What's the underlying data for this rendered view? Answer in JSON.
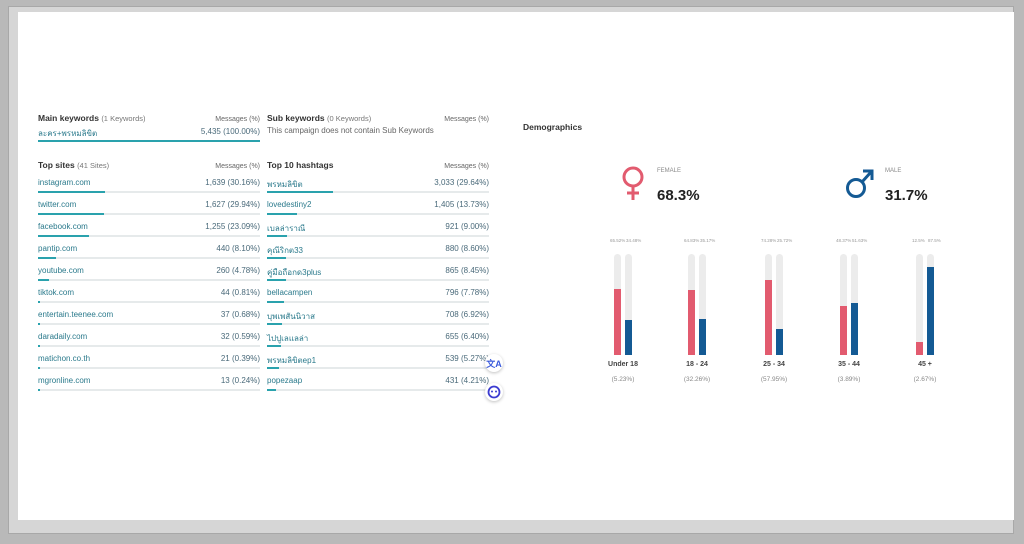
{
  "main_keywords": {
    "title": "Main keywords",
    "count": "(1 Keywords)",
    "messages_header": "Messages (%)",
    "items": [
      {
        "label": "ละคร+พรหมลิขิต",
        "value": "5,435 (100.00%)",
        "pct": 100
      }
    ]
  },
  "sub_keywords": {
    "title": "Sub keywords",
    "count": "(0 Keywords)",
    "messages_header": "Messages (%)",
    "note": "This campaign does not contain Sub Keywords"
  },
  "top_sites": {
    "title": "Top sites",
    "count": "(41 Sites)",
    "messages_header": "Messages (%)",
    "items": [
      {
        "label": "instagram.com",
        "value": "1,639 (30.16%)",
        "pct": 30.16
      },
      {
        "label": "twitter.com",
        "value": "1,627 (29.94%)",
        "pct": 29.94
      },
      {
        "label": "facebook.com",
        "value": "1,255 (23.09%)",
        "pct": 23.09
      },
      {
        "label": "pantip.com",
        "value": "440 (8.10%)",
        "pct": 8.1
      },
      {
        "label": "youtube.com",
        "value": "260 (4.78%)",
        "pct": 4.78
      },
      {
        "label": "tiktok.com",
        "value": "44 (0.81%)",
        "pct": 0.81
      },
      {
        "label": "entertain.teenee.com",
        "value": "37 (0.68%)",
        "pct": 0.68
      },
      {
        "label": "daradaily.com",
        "value": "32 (0.59%)",
        "pct": 0.59
      },
      {
        "label": "matichon.co.th",
        "value": "21 (0.39%)",
        "pct": 0.39
      },
      {
        "label": "mgronline.com",
        "value": "13 (0.24%)",
        "pct": 0.24
      }
    ]
  },
  "top_hashtags": {
    "title": "Top 10 hashtags",
    "messages_header": "Messages (%)",
    "items": [
      {
        "label": "พรหมลิขิต",
        "value": "3,033 (29.64%)",
        "pct": 29.64
      },
      {
        "label": "lovedestiny2",
        "value": "1,405 (13.73%)",
        "pct": 13.73
      },
      {
        "label": "เบลล่าราณี",
        "value": "921 (9.00%)",
        "pct": 9.0
      },
      {
        "label": "คุณีริกต33",
        "value": "880 (8.60%)",
        "pct": 8.6
      },
      {
        "label": "คู่มือถือกด3plus",
        "value": "865 (8.45%)",
        "pct": 8.45
      },
      {
        "label": "bellacampen",
        "value": "796 (7.78%)",
        "pct": 7.78
      },
      {
        "label": "บุพเพสันนิวาส",
        "value": "708 (6.92%)",
        "pct": 6.92
      },
      {
        "label": "ไปปูเลแลล่า",
        "value": "655 (6.40%)",
        "pct": 6.4
      },
      {
        "label": "พรหมลิขิตep1",
        "value": "539 (5.27%)",
        "pct": 5.27
      },
      {
        "label": "popezaap",
        "value": "431 (4.21%)",
        "pct": 4.21
      }
    ]
  },
  "demographics": {
    "title": "Demographics",
    "female": {
      "label": "FEMALE",
      "pct": "68.3%",
      "color": "#e25b6f"
    },
    "male": {
      "label": "MALE",
      "pct": "31.7%",
      "color": "#145a94"
    },
    "age_groups": [
      {
        "label": "Under 18",
        "share": "(5.23%)",
        "female_label": "65.52%",
        "male_label": "34.48%",
        "female": 65.52,
        "male": 34.48
      },
      {
        "label": "18 - 24",
        "share": "(32.26%)",
        "female_label": "64.83%",
        "male_label": "35.17%",
        "female": 64.83,
        "male": 35.17
      },
      {
        "label": "25 - 34",
        "share": "(57.95%)",
        "female_label": "74.28%",
        "male_label": "25.72%",
        "female": 74.28,
        "male": 25.72
      },
      {
        "label": "35 - 44",
        "share": "(3.89%)",
        "female_label": "48.37%",
        "male_label": "51.63%",
        "female": 48.37,
        "male": 51.63
      },
      {
        "label": "45 +",
        "share": "(2.67%)",
        "female_label": "12.5%",
        "male_label": "87.5%",
        "female": 12.5,
        "male": 87.5
      }
    ]
  },
  "colors": {
    "accent": "#2aa2ad",
    "female": "#e25b6f",
    "male": "#145a94"
  },
  "icons": [
    "translate-icon",
    "assistant-face-icon",
    "female-symbol-icon",
    "male-symbol-icon"
  ]
}
